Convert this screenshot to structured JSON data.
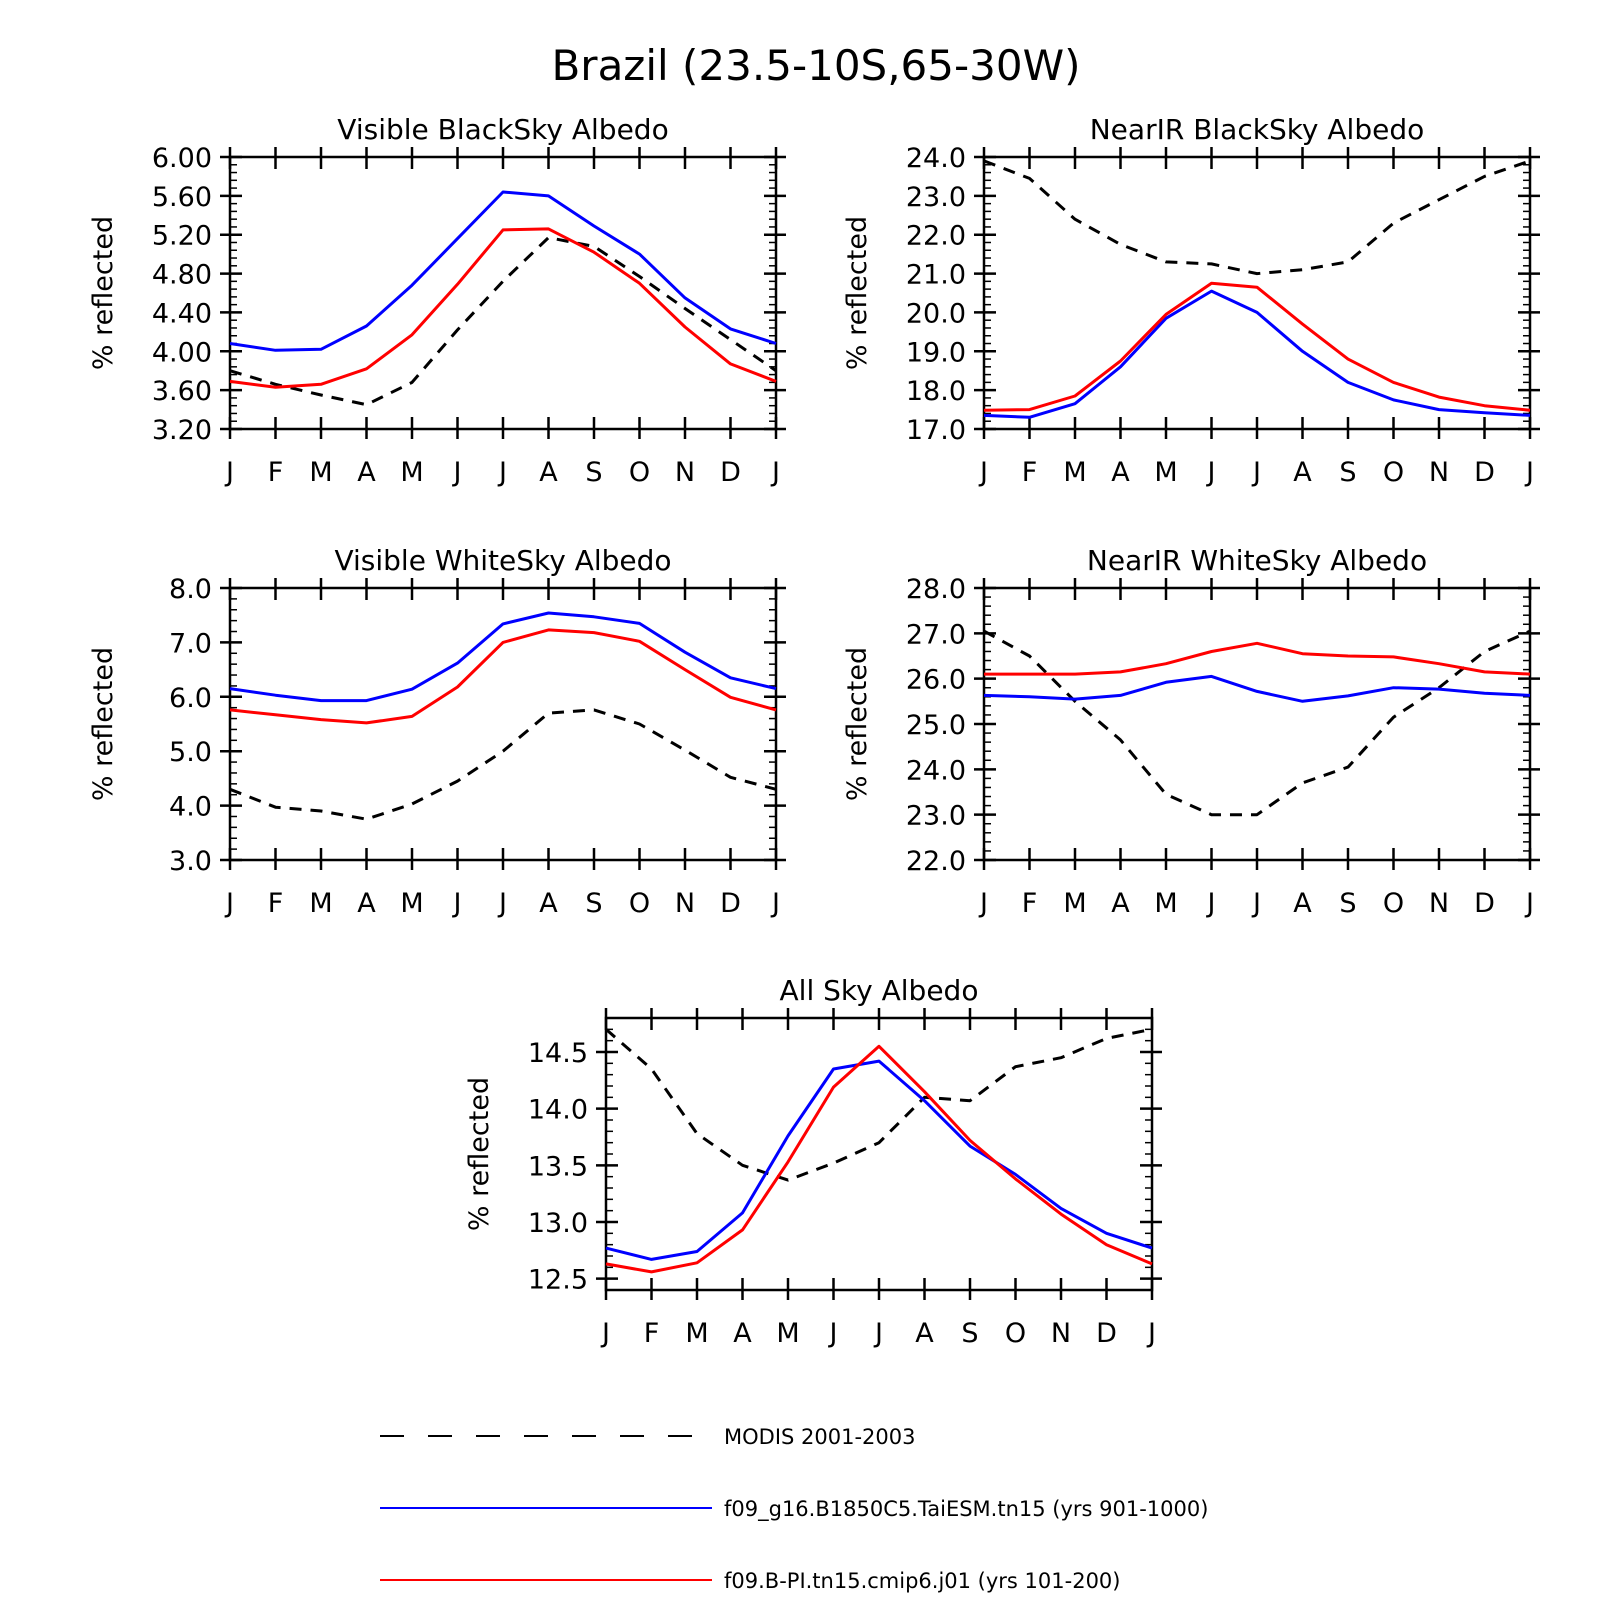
{
  "figure_title": "Brazil (23.5-10S,65-30W)",
  "months": [
    "J",
    "F",
    "M",
    "A",
    "M",
    "J",
    "J",
    "A",
    "S",
    "O",
    "N",
    "D",
    "J"
  ],
  "legend": [
    {
      "label": "MODIS 2001-2003",
      "color": "#000000",
      "dash": true
    },
    {
      "label": "f09_g16.B1850C5.TaiESM.tn15 (yrs 901-1000)",
      "color": "#0000ff",
      "dash": false
    },
    {
      "label": "f09.B-PI.tn15.cmip6.j01 (yrs 101-200)",
      "color": "#ff0000",
      "dash": false
    }
  ],
  "chart_data": [
    {
      "type": "line",
      "title": "Visible BlackSky Albedo",
      "ylabel": "% reflected",
      "ylim": [
        3.2,
        6.0
      ],
      "yticks": [
        "3.20",
        "3.60",
        "4.00",
        "4.40",
        "4.80",
        "5.20",
        "5.60",
        "6.00"
      ],
      "series": [
        {
          "name": "MODIS 2001-2003",
          "values": [
            3.8,
            3.66,
            3.55,
            3.45,
            3.68,
            4.22,
            4.72,
            5.17,
            5.08,
            4.77,
            4.44,
            4.12,
            3.8
          ]
        },
        {
          "name": "f09_g16.B1850C5.TaiESM.tn15 (yrs 901-1000)",
          "values": [
            4.08,
            4.01,
            4.02,
            4.26,
            4.68,
            5.16,
            5.64,
            5.6,
            5.29,
            5.0,
            4.55,
            4.23,
            4.08
          ]
        },
        {
          "name": "f09.B-PI.tn15.cmip6.j01 (yrs 101-200)",
          "values": [
            3.69,
            3.63,
            3.66,
            3.82,
            4.17,
            4.69,
            5.25,
            5.26,
            5.02,
            4.7,
            4.25,
            3.87,
            3.69
          ]
        }
      ]
    },
    {
      "type": "line",
      "title": "NearIR BlackSky Albedo",
      "ylabel": "% reflected",
      "ylim": [
        17.0,
        24.0
      ],
      "yticks": [
        "17.0",
        "18.0",
        "19.0",
        "20.0",
        "21.0",
        "22.0",
        "23.0",
        "24.0"
      ],
      "series": [
        {
          "name": "MODIS 2001-2003",
          "values": [
            23.9,
            23.45,
            22.4,
            21.75,
            21.3,
            21.25,
            21.0,
            21.1,
            21.3,
            22.3,
            22.9,
            23.5,
            23.9
          ]
        },
        {
          "name": "f09_g16.B1850C5.TaiESM.tn15 (yrs 901-1000)",
          "values": [
            17.35,
            17.3,
            17.65,
            18.6,
            19.85,
            20.55,
            20.0,
            19.0,
            18.2,
            17.75,
            17.5,
            17.42,
            17.35
          ]
        },
        {
          "name": "f09.B-PI.tn15.cmip6.j01 (yrs 101-200)",
          "values": [
            17.48,
            17.5,
            17.85,
            18.75,
            19.95,
            20.75,
            20.65,
            19.7,
            18.8,
            18.2,
            17.82,
            17.6,
            17.48
          ]
        }
      ]
    },
    {
      "type": "line",
      "title": "Visible WhiteSky Albedo",
      "ylabel": "% reflected",
      "ylim": [
        3.0,
        8.0
      ],
      "yticks": [
        "3.0",
        "4.0",
        "5.0",
        "6.0",
        "7.0",
        "8.0"
      ],
      "series": [
        {
          "name": "MODIS 2001-2003",
          "values": [
            4.3,
            3.97,
            3.9,
            3.75,
            4.03,
            4.45,
            5.0,
            5.7,
            5.76,
            5.5,
            5.02,
            4.52,
            4.3
          ]
        },
        {
          "name": "f09_g16.B1850C5.TaiESM.tn15 (yrs 901-1000)",
          "values": [
            6.15,
            6.03,
            5.93,
            5.93,
            6.14,
            6.62,
            7.34,
            7.54,
            7.47,
            7.35,
            6.82,
            6.35,
            6.15
          ]
        },
        {
          "name": "f09.B-PI.tn15.cmip6.j01 (yrs 101-200)",
          "values": [
            5.76,
            5.67,
            5.58,
            5.52,
            5.64,
            6.18,
            7.0,
            7.23,
            7.18,
            7.02,
            6.5,
            5.99,
            5.76
          ]
        }
      ]
    },
    {
      "type": "line",
      "title": "NearIR WhiteSky Albedo",
      "ylabel": "% reflected",
      "ylim": [
        22.0,
        28.0
      ],
      "yticks": [
        "22.0",
        "23.0",
        "24.0",
        "25.0",
        "26.0",
        "27.0",
        "28.0"
      ],
      "series": [
        {
          "name": "MODIS 2001-2003",
          "values": [
            27.05,
            26.5,
            25.5,
            24.65,
            23.45,
            23.0,
            23.0,
            23.7,
            24.05,
            25.15,
            25.8,
            26.6,
            27.05
          ]
        },
        {
          "name": "f09_g16.B1850C5.TaiESM.tn15 (yrs 901-1000)",
          "values": [
            25.63,
            25.6,
            25.55,
            25.63,
            25.92,
            26.05,
            25.72,
            25.5,
            25.62,
            25.8,
            25.77,
            25.68,
            25.63
          ]
        },
        {
          "name": "f09.B-PI.tn15.cmip6.j01 (yrs 101-200)",
          "values": [
            26.1,
            26.1,
            26.1,
            26.15,
            26.33,
            26.6,
            26.78,
            26.55,
            26.5,
            26.48,
            26.33,
            26.15,
            26.1
          ]
        }
      ]
    },
    {
      "type": "line",
      "title": "All Sky Albedo",
      "ylabel": "% reflected",
      "ylim": [
        12.4,
        14.8
      ],
      "yticks": [
        "12.5",
        "13.0",
        "13.5",
        "14.0",
        "14.5"
      ],
      "series": [
        {
          "name": "MODIS 2001-2003",
          "values": [
            14.7,
            14.35,
            13.78,
            13.5,
            13.37,
            13.52,
            13.7,
            14.1,
            14.07,
            14.37,
            14.45,
            14.62,
            14.7
          ]
        },
        {
          "name": "f09_g16.B1850C5.TaiESM.tn15 (yrs 901-1000)",
          "values": [
            12.77,
            12.67,
            12.74,
            13.08,
            13.76,
            14.35,
            14.42,
            14.07,
            13.67,
            13.42,
            13.12,
            12.9,
            12.77
          ]
        },
        {
          "name": "f09.B-PI.tn15.cmip6.j01 (yrs 101-200)",
          "values": [
            12.63,
            12.56,
            12.64,
            12.93,
            13.53,
            14.19,
            14.55,
            14.15,
            13.72,
            13.38,
            13.07,
            12.8,
            12.63
          ]
        }
      ]
    }
  ]
}
